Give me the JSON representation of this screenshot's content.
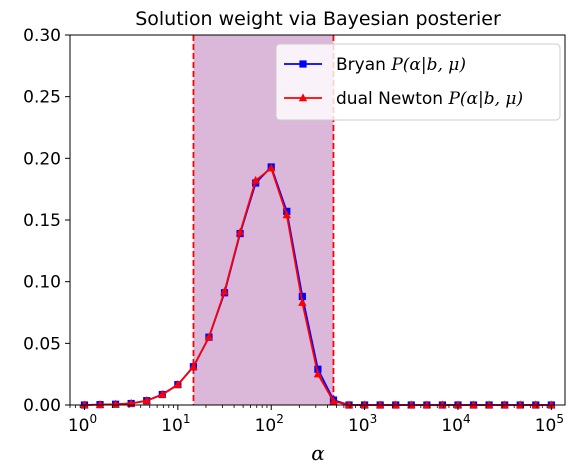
{
  "chart_data": {
    "type": "line",
    "title": "Solution weight via Bayesian posterier",
    "xlabel": "α",
    "ylabel": "",
    "xscale": "log",
    "xlim": [
      0.7,
      140000
    ],
    "ylim": [
      0,
      0.3
    ],
    "yticks": [
      "0.00",
      "0.05",
      "0.10",
      "0.15",
      "0.20",
      "0.25",
      "0.30"
    ],
    "xticks": [
      {
        "base": "10",
        "exp": "0"
      },
      {
        "base": "10",
        "exp": "1"
      },
      {
        "base": "10",
        "exp": "2"
      },
      {
        "base": "10",
        "exp": "3"
      },
      {
        "base": "10",
        "exp": "4"
      },
      {
        "base": "10",
        "exp": "5"
      }
    ],
    "shaded_region": {
      "x": [
        14.7,
        464
      ],
      "color": "#dbb7da"
    },
    "vlines": {
      "x": [
        14.7,
        464
      ],
      "color": "#ff0000",
      "style": "dashed"
    },
    "legend": {
      "placement": "top-right"
    },
    "x": [
      1,
      1.468,
      2.154,
      3.162,
      4.642,
      6.813,
      10,
      14.68,
      21.54,
      31.62,
      46.42,
      68.13,
      100,
      146.8,
      215.4,
      316.2,
      464.2,
      681.3,
      1000,
      1468,
      2154,
      3162,
      4642,
      6813,
      10000,
      14680,
      21540,
      31620,
      46420,
      68130,
      100000
    ],
    "series": [
      {
        "name_prefix": "Bryan ",
        "name_math": "P(α|b, μ)",
        "color": "#0000ff",
        "marker": "square",
        "marker_color": "#0000ff",
        "values": [
          0.0,
          0.0003,
          0.0006,
          0.0012,
          0.0035,
          0.0085,
          0.0165,
          0.031,
          0.055,
          0.091,
          0.139,
          0.18,
          0.193,
          0.157,
          0.088,
          0.029,
          0.004,
          0.0,
          0.0,
          0.0,
          0.0,
          0.0,
          0.0,
          0.0,
          0.0,
          0.0,
          0.0,
          0.0,
          0.0,
          0.0,
          0.0
        ]
      },
      {
        "name_prefix": "dual Newton ",
        "name_math": "P(α|b, μ)",
        "color": "#ff0000",
        "marker": "triangle",
        "marker_color": "#ff0000",
        "values": [
          0.0,
          0.0003,
          0.0006,
          0.0012,
          0.0035,
          0.0085,
          0.0165,
          0.031,
          0.055,
          0.092,
          0.14,
          0.182,
          0.192,
          0.154,
          0.083,
          0.025,
          0.003,
          0.0,
          0.0,
          0.0,
          0.0,
          0.0,
          0.0,
          0.0,
          0.0,
          0.0,
          0.0,
          0.0,
          0.0,
          0.0,
          0.0
        ]
      }
    ]
  }
}
